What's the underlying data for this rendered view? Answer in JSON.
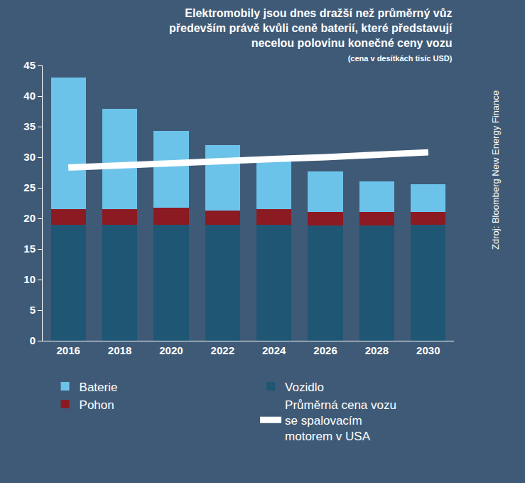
{
  "chart_data": {
    "type": "bar",
    "title": "Elektromobily jsou dnes dražší než průměrný vůz především právě kvůli ceně baterií, které představují necelou polovinu konečné ceny vozu",
    "subtitle": "(cena v desítkách tisíc USD)",
    "source": "Zdroj: Bloomberg New Energy Finance",
    "categories": [
      "2016",
      "2018",
      "2020",
      "2022",
      "2024",
      "2026",
      "2028",
      "2030"
    ],
    "stacked": true,
    "series": [
      {
        "name": "Vozidlo",
        "type": "bar",
        "color": "#1f5673",
        "values": [
          19,
          19,
          19,
          19,
          19,
          18.8,
          18.8,
          18.9
        ]
      },
      {
        "name": "Pohon",
        "type": "bar",
        "color": "#8c1a22",
        "values": [
          2.5,
          2.5,
          2.7,
          2.3,
          2.5,
          2.2,
          2.2,
          2.2
        ]
      },
      {
        "name": "Baterie",
        "type": "bar",
        "color": "#6cc3ea",
        "values": [
          21.5,
          16.4,
          12.6,
          10.7,
          7.9,
          6.7,
          5.1,
          4.5
        ]
      },
      {
        "name": "Průměrná cena vozu se spalovacím motorem v USA",
        "type": "line",
        "color": "#ffffff",
        "values": [
          28.3,
          28.7,
          29.0,
          29.3,
          29.7,
          30.0,
          30.4,
          30.8
        ]
      }
    ],
    "ylim": [
      0,
      45
    ],
    "yticks": [
      0,
      5,
      10,
      15,
      20,
      25,
      30,
      35,
      40,
      45
    ],
    "grid": false,
    "legend": "bottom"
  }
}
